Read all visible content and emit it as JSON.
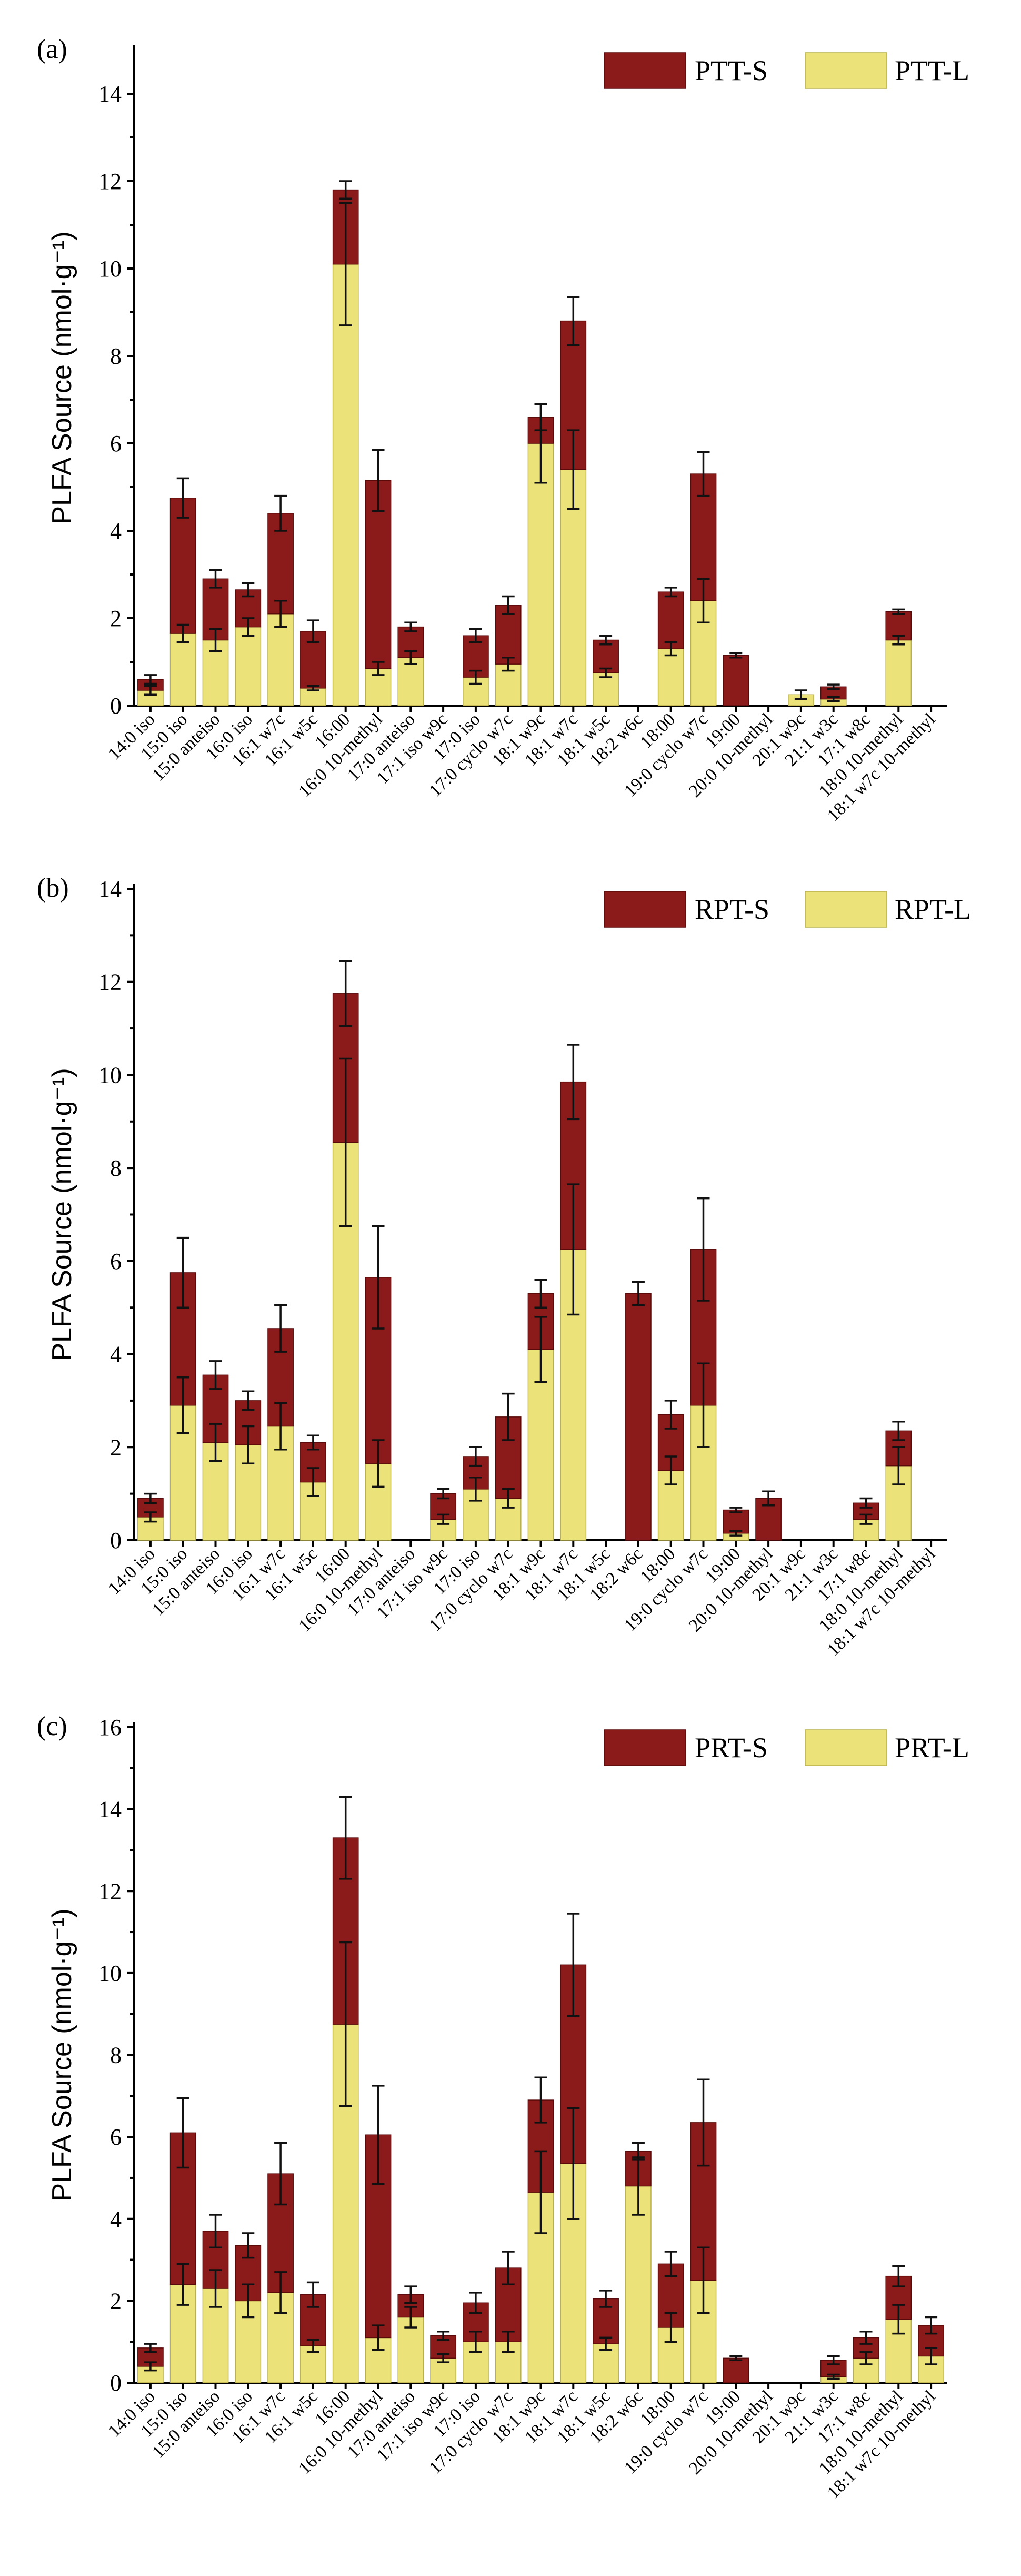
{
  "colors": {
    "S": "#8b1a1a",
    "L": "#ebe27a",
    "S_edge": "#5a0a0a",
    "L_edge": "#b9b04a"
  },
  "chart_data": [
    {
      "type": "bar",
      "stacked": true,
      "panel_label": "(a)",
      "ylabel": "PLFA Source (nmol·g⁻¹)",
      "xlabel": "",
      "ylim": [
        0,
        15
      ],
      "yticks": [
        0,
        2,
        4,
        6,
        8,
        10,
        12,
        14
      ],
      "legend_position": "top-right",
      "categories": [
        "14:0 iso",
        "15:0 iso",
        "15:0 anteiso",
        "16:0 iso",
        "16:1 w7c",
        "16:1 w5c",
        "16:00",
        "16:0 10-methyl",
        "17:0 anteiso",
        "17:1 iso w9c",
        "17:0 iso",
        "17:0 cyclo w7c",
        "18:1 w9c",
        "18:1 w7c",
        "18:1 w5c",
        "18:2 w6c",
        "18:00",
        "19:0 cyclo w7c",
        "19:00",
        "20:0 10-methyl",
        "20:1 w9c",
        "21:1 w3c",
        "17:1 w8c",
        "18:0 10-methyl",
        "18:1 w7c 10-methyl"
      ],
      "series": [
        {
          "name": "PTT-L",
          "values": [
            0.35,
            1.65,
            1.5,
            1.8,
            2.1,
            0.4,
            10.1,
            0.85,
            1.1,
            0,
            0.65,
            0.95,
            6.0,
            5.4,
            0.75,
            0,
            1.3,
            2.4,
            0,
            0,
            0.25,
            0.15,
            0,
            1.5,
            0
          ],
          "errors": [
            0.1,
            0.2,
            0.25,
            0.2,
            0.3,
            0.05,
            1.4,
            0.15,
            0.15,
            0,
            0.15,
            0.15,
            0.9,
            0.9,
            0.1,
            0,
            0.15,
            0.5,
            0,
            0,
            0.1,
            0.05,
            0,
            0.1,
            0
          ]
        },
        {
          "name": "PTT-S",
          "values": [
            0.25,
            3.1,
            1.4,
            0.85,
            2.3,
            1.3,
            1.7,
            4.3,
            0.7,
            0,
            0.95,
            1.35,
            0.6,
            3.4,
            0.75,
            0,
            1.3,
            2.9,
            1.15,
            0,
            0,
            0.28,
            0,
            0.65,
            0
          ],
          "errors": [
            0.1,
            0.45,
            0.2,
            0.15,
            0.4,
            0.25,
            0.2,
            0.7,
            0.1,
            0,
            0.15,
            0.2,
            0.3,
            0.55,
            0.1,
            0,
            0.1,
            0.5,
            0.05,
            0,
            0,
            0.05,
            0,
            0.05,
            0
          ]
        }
      ]
    },
    {
      "type": "bar",
      "stacked": true,
      "panel_label": "(b)",
      "ylabel": "PLFA Source (nmol·g⁻¹)",
      "xlabel": "",
      "ylim": [
        0,
        14
      ],
      "yticks": [
        0,
        2,
        4,
        6,
        8,
        10,
        12,
        14
      ],
      "legend_position": "top-right",
      "categories": [
        "14:0 iso",
        "15:0 iso",
        "15:0 anteiso",
        "16:0 iso",
        "16:1 w7c",
        "16:1 w5c",
        "16:00",
        "16:0 10-methyl",
        "17:0 anteiso",
        "17:1 iso w9c",
        "17:0 iso",
        "17:0 cyclo w7c",
        "18:1 w9c",
        "18:1 w7c",
        "18:1 w5c",
        "18:2 w6c",
        "18:00",
        "19:0 cyclo w7c",
        "19:00",
        "20:0 10-methyl",
        "20:1 w9c",
        "21:1 w3c",
        "17:1 w8c",
        "18:0 10-methyl",
        "18:1 w7c 10-methyl"
      ],
      "series": [
        {
          "name": "RPT-L",
          "values": [
            0.5,
            2.9,
            2.1,
            2.05,
            2.45,
            1.25,
            8.55,
            1.65,
            0,
            0.45,
            1.1,
            0.9,
            4.1,
            6.25,
            0,
            0,
            1.5,
            2.9,
            0.15,
            0,
            0,
            0,
            0.45,
            1.6,
            0
          ],
          "errors": [
            0.1,
            0.6,
            0.4,
            0.4,
            0.5,
            0.3,
            1.8,
            0.5,
            0,
            0.1,
            0.25,
            0.2,
            0.7,
            1.4,
            0,
            0,
            0.3,
            0.9,
            0.05,
            0,
            0,
            0,
            0.1,
            0.4,
            0
          ]
        },
        {
          "name": "RPT-S",
          "values": [
            0.4,
            2.85,
            1.45,
            0.95,
            2.1,
            0.85,
            3.2,
            4.0,
            0,
            0.55,
            0.7,
            1.75,
            1.2,
            3.6,
            0,
            5.3,
            1.2,
            3.35,
            0.5,
            0.9,
            0,
            0,
            0.35,
            0.75,
            0
          ],
          "errors": [
            0.1,
            0.75,
            0.3,
            0.2,
            0.5,
            0.15,
            0.7,
            1.1,
            0,
            0.1,
            0.2,
            0.5,
            0.3,
            0.8,
            0,
            0.25,
            0.3,
            1.1,
            0.05,
            0.15,
            0,
            0,
            0.1,
            0.2,
            0
          ]
        }
      ]
    },
    {
      "type": "bar",
      "stacked": true,
      "panel_label": "(c)",
      "ylabel": "PLFA Source (nmol·g⁻¹)",
      "xlabel": "",
      "ylim": [
        0,
        16
      ],
      "yticks": [
        0,
        2,
        4,
        6,
        8,
        10,
        12,
        14,
        16
      ],
      "legend_position": "top-right",
      "categories": [
        "14:0 iso",
        "15:0 iso",
        "15:0 anteiso",
        "16:0 iso",
        "16:1 w7c",
        "16:1 w5c",
        "16:00",
        "16:0 10-methyl",
        "17:0 anteiso",
        "17:1 iso w9c",
        "17:0 iso",
        "17:0 cyclo w7c",
        "18:1 w9c",
        "18:1 w7c",
        "18:1 w5c",
        "18:2 w6c",
        "18:00",
        "19:0 cyclo w7c",
        "19:00",
        "20:0 10-methyl",
        "20:1 w9c",
        "21:1 w3c",
        "17:1 w8c",
        "18:0 10-methyl",
        "18:1 w7c 10-methyl"
      ],
      "series": [
        {
          "name": "PRT-L",
          "values": [
            0.4,
            2.4,
            2.3,
            2.0,
            2.2,
            0.9,
            8.75,
            1.1,
            1.6,
            0.6,
            1.0,
            1.0,
            4.65,
            5.35,
            0.95,
            4.8,
            1.35,
            2.5,
            0,
            0,
            0,
            0.15,
            0.6,
            1.55,
            0.65
          ],
          "errors": [
            0.1,
            0.5,
            0.45,
            0.4,
            0.5,
            0.15,
            2.0,
            0.3,
            0.25,
            0.1,
            0.25,
            0.25,
            1.0,
            1.35,
            0.15,
            0.7,
            0.35,
            0.8,
            0,
            0,
            0,
            0.05,
            0.15,
            0.35,
            0.2
          ]
        },
        {
          "name": "PRT-S",
          "values": [
            0.45,
            3.7,
            1.4,
            1.35,
            2.9,
            1.25,
            4.55,
            4.95,
            0.55,
            0.55,
            0.95,
            1.8,
            2.25,
            4.85,
            1.1,
            0.85,
            1.55,
            3.85,
            0.6,
            0,
            0,
            0.4,
            0.5,
            1.05,
            0.75
          ],
          "errors": [
            0.1,
            0.85,
            0.4,
            0.3,
            0.75,
            0.3,
            1.0,
            1.2,
            0.2,
            0.1,
            0.25,
            0.4,
            0.55,
            1.25,
            0.2,
            0.2,
            0.3,
            1.05,
            0.05,
            0,
            0,
            0.1,
            0.15,
            0.25,
            0.2
          ]
        }
      ]
    }
  ]
}
